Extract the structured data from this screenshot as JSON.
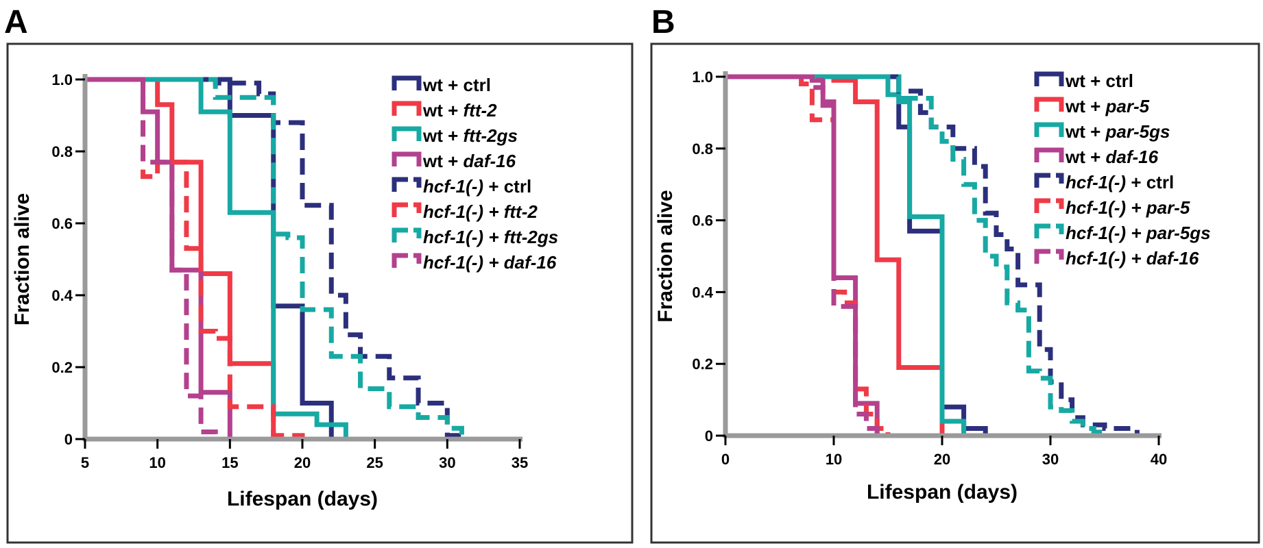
{
  "figure": {
    "panel_letters": [
      "A",
      "B"
    ]
  },
  "colors": {
    "ctrl": "#2b2f7c",
    "rnai": "#ef3a47",
    "gs": "#17a9a3",
    "daf16": "#b3418e",
    "axis": "#9a9a9a",
    "frame": "#333333"
  },
  "chart_data": [
    {
      "type": "line",
      "step": true,
      "panel": "A",
      "xlabel": "Lifespan (days)",
      "ylabel": "Fraction alive",
      "xlim": [
        5,
        35
      ],
      "ylim": [
        0,
        1.0
      ],
      "xticks": [
        5,
        10,
        15,
        20,
        25,
        30,
        35
      ],
      "yticks": [
        0,
        0.2,
        0.4,
        0.6,
        0.8,
        1.0
      ],
      "ytick_labels": [
        "0",
        "0.2",
        "0.4",
        "0.6",
        "0.8",
        "1.0"
      ],
      "legend_position": "top-right",
      "series": [
        {
          "name": "wt + ctrl",
          "parts": [
            {
              "t": "wt + ",
              "i": false
            },
            {
              "t": "ctrl",
              "i": false
            }
          ],
          "color_key": "ctrl",
          "dashed": false,
          "x": [
            5,
            15,
            18,
            20,
            22
          ],
          "y": [
            1.0,
            0.9,
            0.37,
            0.1,
            0
          ]
        },
        {
          "name": "wt + ftt-2",
          "parts": [
            {
              "t": "wt + ",
              "i": false
            },
            {
              "t": "ftt-2",
              "i": true
            }
          ],
          "color_key": "rnai",
          "dashed": false,
          "x": [
            5,
            10,
            11,
            13,
            15,
            18
          ],
          "y": [
            1.0,
            0.93,
            0.77,
            0.46,
            0.21,
            0
          ]
        },
        {
          "name": "wt + ftt-2gs",
          "parts": [
            {
              "t": "wt + ",
              "i": false
            },
            {
              "t": "ftt-2gs",
              "i": true
            }
          ],
          "color_key": "gs",
          "dashed": false,
          "x": [
            5,
            13,
            15,
            18,
            21,
            23
          ],
          "y": [
            1.0,
            0.91,
            0.63,
            0.07,
            0.04,
            0
          ]
        },
        {
          "name": "wt + daf-16",
          "parts": [
            {
              "t": "wt + ",
              "i": false
            },
            {
              "t": "daf-16",
              "i": true
            }
          ],
          "color_key": "daf16",
          "dashed": false,
          "x": [
            5,
            9,
            10,
            11,
            13,
            15
          ],
          "y": [
            1.0,
            0.91,
            0.77,
            0.47,
            0.13,
            0
          ]
        },
        {
          "name": "hcf-1(-) + ctrl",
          "parts": [
            {
              "t": "hcf-1(-)",
              "i": true
            },
            {
              "t": " + ctrl",
              "i": false
            }
          ],
          "color_key": "ctrl",
          "dashed": true,
          "x": [
            5,
            14,
            17,
            18,
            20,
            22,
            23,
            24,
            26,
            28,
            30,
            31
          ],
          "y": [
            1.0,
            0.99,
            0.96,
            0.88,
            0.65,
            0.4,
            0.29,
            0.23,
            0.17,
            0.1,
            0.01,
            0
          ]
        },
        {
          "name": "hcf-1(-) + ftt-2",
          "parts": [
            {
              "t": "hcf-1(-)",
              "i": true
            },
            {
              "t": " + ftt-2",
              "i": true
            }
          ],
          "color_key": "rnai",
          "dashed": true,
          "x": [
            5,
            9,
            10,
            12,
            13,
            14,
            15,
            18,
            20
          ],
          "y": [
            1.0,
            0.73,
            0.77,
            0.53,
            0.3,
            0.28,
            0.09,
            0.01,
            0
          ]
        },
        {
          "name": "hcf-1(-) + ftt-2gs",
          "parts": [
            {
              "t": "hcf-1(-)",
              "i": true
            },
            {
              "t": " + ftt-2gs",
              "i": true
            }
          ],
          "color_key": "gs",
          "dashed": true,
          "x": [
            5,
            14,
            18,
            19,
            20,
            22,
            24,
            26,
            28,
            30,
            31
          ],
          "y": [
            1.0,
            0.95,
            0.57,
            0.56,
            0.36,
            0.23,
            0.14,
            0.09,
            0.06,
            0.03,
            0
          ]
        },
        {
          "name": "hcf-1(-) + daf-16",
          "parts": [
            {
              "t": "hcf-1(-)",
              "i": true
            },
            {
              "t": " + daf-16",
              "i": true
            }
          ],
          "color_key": "daf16",
          "dashed": true,
          "x": [
            5,
            9,
            11,
            12,
            13,
            14
          ],
          "y": [
            1.0,
            0.77,
            0.47,
            0.12,
            0.02,
            0
          ]
        }
      ]
    },
    {
      "type": "line",
      "step": true,
      "panel": "B",
      "xlabel": "Lifespan (days)",
      "ylabel": "Fraction alive",
      "xlim": [
        0,
        40
      ],
      "ylim": [
        0,
        1.0
      ],
      "xticks": [
        0,
        10,
        20,
        30,
        40
      ],
      "yticks": [
        0,
        0.2,
        0.4,
        0.6,
        0.8,
        1.0
      ],
      "ytick_labels": [
        "0",
        "0.2",
        "0.4",
        "0.6",
        "0.8",
        "1.0"
      ],
      "legend_position": "top-right",
      "series": [
        {
          "name": "wt + ctrl",
          "parts": [
            {
              "t": "wt + ",
              "i": false
            },
            {
              "t": "ctrl",
              "i": false
            }
          ],
          "color_key": "ctrl",
          "dashed": false,
          "x": [
            0,
            16,
            17,
            20,
            22,
            24
          ],
          "y": [
            1.0,
            0.86,
            0.57,
            0.08,
            0.02,
            0
          ]
        },
        {
          "name": "wt + par-5",
          "parts": [
            {
              "t": "wt + ",
              "i": false
            },
            {
              "t": "par-5",
              "i": true
            }
          ],
          "color_key": "rnai",
          "dashed": false,
          "x": [
            0,
            10,
            12,
            14,
            16,
            20
          ],
          "y": [
            1.0,
            0.99,
            0.93,
            0.49,
            0.19,
            0
          ]
        },
        {
          "name": "wt + par-5gs",
          "parts": [
            {
              "t": "wt + ",
              "i": false
            },
            {
              "t": "par-5gs",
              "i": true
            }
          ],
          "color_key": "gs",
          "dashed": false,
          "x": [
            0,
            15,
            16,
            17,
            20,
            22
          ],
          "y": [
            1.0,
            0.95,
            0.93,
            0.61,
            0.04,
            0
          ]
        },
        {
          "name": "wt + daf-16",
          "parts": [
            {
              "t": "wt + ",
              "i": false
            },
            {
              "t": "daf-16",
              "i": true
            }
          ],
          "color_key": "daf16",
          "dashed": false,
          "x": [
            0,
            8,
            9,
            10,
            12,
            14
          ],
          "y": [
            1.0,
            0.99,
            0.92,
            0.44,
            0.09,
            0
          ]
        },
        {
          "name": "hcf-1(-) + ctrl",
          "parts": [
            {
              "t": "hcf-1(-)",
              "i": true
            },
            {
              "t": " + ctrl",
              "i": false
            }
          ],
          "color_key": "ctrl",
          "dashed": true,
          "x": [
            0,
            16,
            18,
            19,
            21,
            23,
            24,
            25,
            26,
            27,
            29,
            30,
            31,
            32,
            33,
            35,
            38
          ],
          "y": [
            1.0,
            0.96,
            0.9,
            0.86,
            0.8,
            0.75,
            0.62,
            0.56,
            0.52,
            0.42,
            0.24,
            0.15,
            0.1,
            0.05,
            0.03,
            0.02,
            0
          ]
        },
        {
          "name": "hcf-1(-) + par-5",
          "parts": [
            {
              "t": "hcf-1(-)",
              "i": true
            },
            {
              "t": " + par-5",
              "i": true
            }
          ],
          "color_key": "rnai",
          "dashed": true,
          "x": [
            0,
            7,
            8,
            10,
            11,
            12,
            13,
            14,
            15
          ],
          "y": [
            1.0,
            0.98,
            0.88,
            0.4,
            0.37,
            0.13,
            0.06,
            0.02,
            0
          ]
        },
        {
          "name": "hcf-1(-) + par-5gs",
          "parts": [
            {
              "t": "hcf-1(-)",
              "i": true
            },
            {
              "t": " + par-5gs",
              "i": true
            }
          ],
          "color_key": "gs",
          "dashed": true,
          "x": [
            0,
            16,
            19,
            20,
            21,
            22,
            23,
            24,
            25,
            26,
            27,
            28,
            29,
            30,
            31,
            32,
            33,
            34,
            35
          ],
          "y": [
            1.0,
            0.94,
            0.86,
            0.82,
            0.77,
            0.7,
            0.6,
            0.5,
            0.47,
            0.37,
            0.35,
            0.18,
            0.16,
            0.08,
            0.07,
            0.04,
            0.02,
            0.01,
            0
          ]
        },
        {
          "name": "hcf-1(-) + daf-16",
          "parts": [
            {
              "t": "hcf-1(-)",
              "i": true
            },
            {
              "t": " + daf-16",
              "i": true
            }
          ],
          "color_key": "daf16",
          "dashed": true,
          "x": [
            0,
            8,
            9,
            10,
            12,
            13,
            14
          ],
          "y": [
            1.0,
            0.97,
            0.93,
            0.36,
            0.06,
            0.02,
            0
          ]
        }
      ]
    }
  ]
}
